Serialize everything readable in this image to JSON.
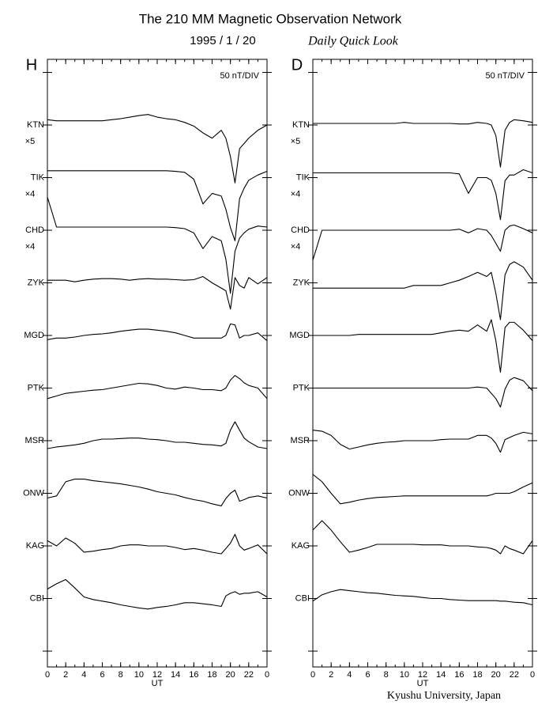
{
  "header": {
    "title": "The 210 MM Magnetic Observation Network",
    "date": "1995  /   1  /  20",
    "subtitle": "Daily Quick Look"
  },
  "footer": "Kyushu University, Japan",
  "chart_data": [
    {
      "type": "line",
      "title": "H",
      "scale_note": "50 nT/DIV",
      "xlabel": "UT",
      "color": "#000000",
      "xlim": [
        0,
        24
      ],
      "xticks": [
        0,
        2,
        4,
        6,
        8,
        10,
        12,
        14,
        16,
        18,
        20,
        22,
        {
          "value": 24,
          "label": "0"
        }
      ],
      "x": [
        0,
        1,
        2,
        3,
        4,
        5,
        6,
        7,
        8,
        9,
        10,
        11,
        12,
        13,
        14,
        15,
        16,
        17,
        18,
        19,
        19.5,
        20,
        20.5,
        21,
        21.5,
        22,
        23,
        24
      ],
      "series": [
        {
          "name": "KTN",
          "scale_label": "×5",
          "values": [
            0.1,
            0.08,
            0.08,
            0.08,
            0.08,
            0.08,
            0.08,
            0.1,
            0.12,
            0.15,
            0.18,
            0.2,
            0.15,
            0.12,
            0.1,
            0.05,
            -0.02,
            -0.15,
            -0.25,
            -0.1,
            -0.25,
            -0.6,
            -1.1,
            -0.45,
            -0.35,
            -0.25,
            -0.1,
            0.0
          ]
        },
        {
          "name": "TIK",
          "scale_label": "×4",
          "values": [
            0.13,
            0.13,
            0.13,
            0.13,
            0.13,
            0.13,
            0.13,
            0.13,
            0.13,
            0.13,
            0.13,
            0.13,
            0.13,
            0.13,
            0.12,
            0.1,
            -0.03,
            -0.5,
            -0.3,
            -0.35,
            -0.6,
            -0.95,
            -1.2,
            -0.4,
            -0.2,
            -0.05,
            0.05,
            0.12
          ]
        },
        {
          "name": "CHD",
          "scale_label": "×4",
          "values": [
            0.63,
            0.06,
            0.06,
            0.06,
            0.06,
            0.06,
            0.06,
            0.06,
            0.06,
            0.06,
            0.06,
            0.06,
            0.06,
            0.06,
            0.05,
            0.03,
            -0.05,
            -0.35,
            -0.12,
            -0.2,
            -0.55,
            -1.2,
            -0.4,
            -0.15,
            -0.05,
            0.02,
            0.08,
            0.06
          ]
        },
        {
          "name": "ZYK",
          "values": [
            0.05,
            0.05,
            0.05,
            0.02,
            0.05,
            0.07,
            0.08,
            0.08,
            0.07,
            0.05,
            0.07,
            0.08,
            0.07,
            0.07,
            0.06,
            0.05,
            0.06,
            0.12,
            0.0,
            -0.1,
            -0.15,
            -0.5,
            0.1,
            -0.05,
            -0.1,
            0.1,
            -0.02,
            0.1
          ]
        },
        {
          "name": "MGD",
          "values": [
            -0.08,
            -0.05,
            -0.05,
            -0.03,
            0.0,
            0.02,
            0.03,
            0.05,
            0.08,
            0.1,
            0.12,
            0.12,
            0.1,
            0.08,
            0.05,
            0.0,
            -0.05,
            -0.05,
            -0.05,
            -0.05,
            0.0,
            0.22,
            0.2,
            -0.05,
            0.0,
            0.0,
            0.05,
            -0.1
          ]
        },
        {
          "name": "PTK",
          "values": [
            -0.2,
            -0.15,
            -0.1,
            -0.08,
            -0.06,
            -0.04,
            -0.03,
            0.0,
            0.03,
            0.06,
            0.09,
            0.08,
            0.05,
            0.0,
            -0.02,
            0.02,
            0.0,
            -0.03,
            -0.03,
            -0.05,
            0.0,
            0.15,
            0.24,
            0.18,
            0.1,
            0.05,
            0.0,
            -0.2
          ]
        },
        {
          "name": "MSR",
          "values": [
            -0.15,
            -0.12,
            -0.1,
            -0.08,
            -0.05,
            0.0,
            0.03,
            0.03,
            0.04,
            0.05,
            0.05,
            0.03,
            0.02,
            0.0,
            -0.03,
            -0.03,
            -0.05,
            -0.07,
            -0.08,
            -0.1,
            -0.05,
            0.2,
            0.36,
            0.2,
            0.05,
            -0.02,
            -0.12,
            -0.15
          ]
        },
        {
          "name": "ONW",
          "values": [
            -0.09,
            -0.05,
            0.22,
            0.27,
            0.27,
            0.24,
            0.22,
            0.2,
            0.18,
            0.15,
            0.12,
            0.08,
            0.03,
            0.0,
            -0.03,
            -0.08,
            -0.12,
            -0.15,
            -0.2,
            -0.24,
            -0.1,
            0.0,
            0.06,
            -0.15,
            -0.12,
            -0.08,
            -0.05,
            -0.09
          ]
        },
        {
          "name": "KAG",
          "values": [
            0.1,
            0.0,
            0.15,
            0.05,
            -0.12,
            -0.1,
            -0.07,
            -0.05,
            0.0,
            0.02,
            0.02,
            0.0,
            0.0,
            0.0,
            -0.03,
            -0.07,
            -0.05,
            -0.08,
            -0.12,
            -0.15,
            -0.05,
            0.05,
            0.22,
            0.0,
            -0.08,
            -0.05,
            0.02,
            -0.15
          ]
        },
        {
          "name": "CBI",
          "values": [
            0.18,
            0.28,
            0.36,
            0.2,
            0.03,
            -0.02,
            -0.05,
            -0.08,
            -0.12,
            -0.15,
            -0.18,
            -0.2,
            -0.17,
            -0.15,
            -0.12,
            -0.08,
            -0.08,
            -0.1,
            -0.12,
            -0.15,
            0.05,
            0.1,
            0.13,
            0.08,
            0.1,
            0.1,
            0.13,
            0.03
          ]
        }
      ]
    },
    {
      "type": "line",
      "title": "D",
      "scale_note": "50 nT/DIV",
      "xlabel": "UT",
      "color": "#000000",
      "xlim": [
        0,
        24
      ],
      "xticks": [
        0,
        2,
        4,
        6,
        8,
        10,
        12,
        14,
        16,
        18,
        20,
        22,
        {
          "value": 24,
          "label": "0"
        }
      ],
      "x": [
        0,
        1,
        2,
        3,
        4,
        5,
        6,
        7,
        8,
        9,
        10,
        11,
        12,
        13,
        14,
        15,
        16,
        17,
        18,
        19,
        19.5,
        20,
        20.5,
        21,
        21.5,
        22,
        23,
        24
      ],
      "series": [
        {
          "name": "KTN",
          "scale_label": "×5",
          "values": [
            0.03,
            0.03,
            0.03,
            0.03,
            0.03,
            0.03,
            0.03,
            0.03,
            0.03,
            0.03,
            0.05,
            0.03,
            0.03,
            0.03,
            0.03,
            0.03,
            0.02,
            0.02,
            0.05,
            0.03,
            0.0,
            -0.2,
            -0.8,
            -0.1,
            0.05,
            0.1,
            0.08,
            0.05
          ]
        },
        {
          "name": "TIK",
          "scale_label": "×4",
          "values": [
            0.09,
            0.09,
            0.09,
            0.09,
            0.09,
            0.09,
            0.09,
            0.09,
            0.09,
            0.09,
            0.09,
            0.09,
            0.09,
            0.09,
            0.09,
            0.09,
            0.07,
            -0.3,
            0.0,
            0.0,
            -0.05,
            -0.3,
            -0.8,
            -0.06,
            0.05,
            0.05,
            0.15,
            0.09
          ]
        },
        {
          "name": "CHD",
          "scale_label": "×4",
          "values": [
            -0.57,
            0,
            0,
            0,
            0,
            0,
            0,
            0,
            0,
            0,
            0,
            0,
            0,
            0,
            0,
            0,
            0.02,
            -0.05,
            0.03,
            0.0,
            -0.1,
            -0.25,
            -0.4,
            0.0,
            0.08,
            0.1,
            0.03,
            -0.05
          ]
        },
        {
          "name": "ZYK",
          "values": [
            -0.1,
            -0.1,
            -0.1,
            -0.1,
            -0.1,
            -0.1,
            -0.1,
            -0.1,
            -0.1,
            -0.1,
            -0.1,
            -0.05,
            -0.05,
            -0.05,
            -0.05,
            0.0,
            0.05,
            0.12,
            0.2,
            0.12,
            0.2,
            -0.2,
            -0.7,
            0.15,
            0.35,
            0.4,
            0.3,
            0.05
          ]
        },
        {
          "name": "MGD",
          "values": [
            0,
            0,
            0,
            0,
            0,
            0.02,
            0.02,
            0.02,
            0.02,
            0.02,
            0.02,
            0.02,
            0.02,
            0.02,
            0.05,
            0.08,
            0.1,
            0.08,
            0.2,
            0.08,
            0.3,
            -0.1,
            -0.7,
            0.15,
            0.25,
            0.25,
            0.1,
            -0.1
          ]
        },
        {
          "name": "PTK",
          "values": [
            0,
            0,
            0,
            0,
            0,
            0,
            0,
            0,
            0,
            0,
            0,
            0,
            0,
            0,
            0,
            0,
            0,
            0,
            0.02,
            0.0,
            -0.1,
            -0.2,
            -0.36,
            -0.02,
            0.15,
            0.2,
            0.14,
            -0.05
          ]
        },
        {
          "name": "MSR",
          "values": [
            0.2,
            0.18,
            0.1,
            -0.07,
            -0.16,
            -0.12,
            -0.08,
            -0.05,
            -0.03,
            -0.02,
            0.0,
            0.0,
            0.0,
            0.0,
            0.02,
            0.03,
            0.03,
            0.03,
            0.1,
            0.1,
            0.05,
            -0.05,
            -0.22,
            0.02,
            0.06,
            0.1,
            0.16,
            0.13
          ]
        },
        {
          "name": "ONW",
          "values": [
            0.36,
            0.22,
            0.0,
            -0.2,
            -0.17,
            -0.13,
            -0.1,
            -0.08,
            -0.07,
            -0.06,
            -0.05,
            -0.05,
            -0.05,
            -0.05,
            -0.05,
            -0.05,
            -0.05,
            -0.05,
            -0.05,
            -0.05,
            -0.03,
            0.0,
            0.0,
            0.0,
            0.0,
            0.03,
            0.12,
            0.2
          ]
        },
        {
          "name": "KAG",
          "values": [
            0.3,
            0.48,
            0.3,
            0.08,
            -0.12,
            -0.08,
            -0.03,
            0.03,
            0.03,
            0.03,
            0.03,
            0.03,
            0.02,
            0.02,
            0.02,
            0.0,
            0.0,
            0.0,
            -0.02,
            -0.03,
            -0.05,
            -0.08,
            -0.15,
            0.0,
            -0.05,
            -0.08,
            -0.15,
            0.1
          ]
        },
        {
          "name": "CBI",
          "values": [
            -0.05,
            0.07,
            0.13,
            0.17,
            0.15,
            0.13,
            0.11,
            0.1,
            0.08,
            0.06,
            0.05,
            0.04,
            0.02,
            0.0,
            0.0,
            -0.02,
            -0.03,
            -0.04,
            -0.04,
            -0.04,
            -0.04,
            -0.04,
            -0.05,
            -0.05,
            -0.06,
            -0.07,
            -0.08,
            -0.12
          ]
        }
      ]
    }
  ]
}
